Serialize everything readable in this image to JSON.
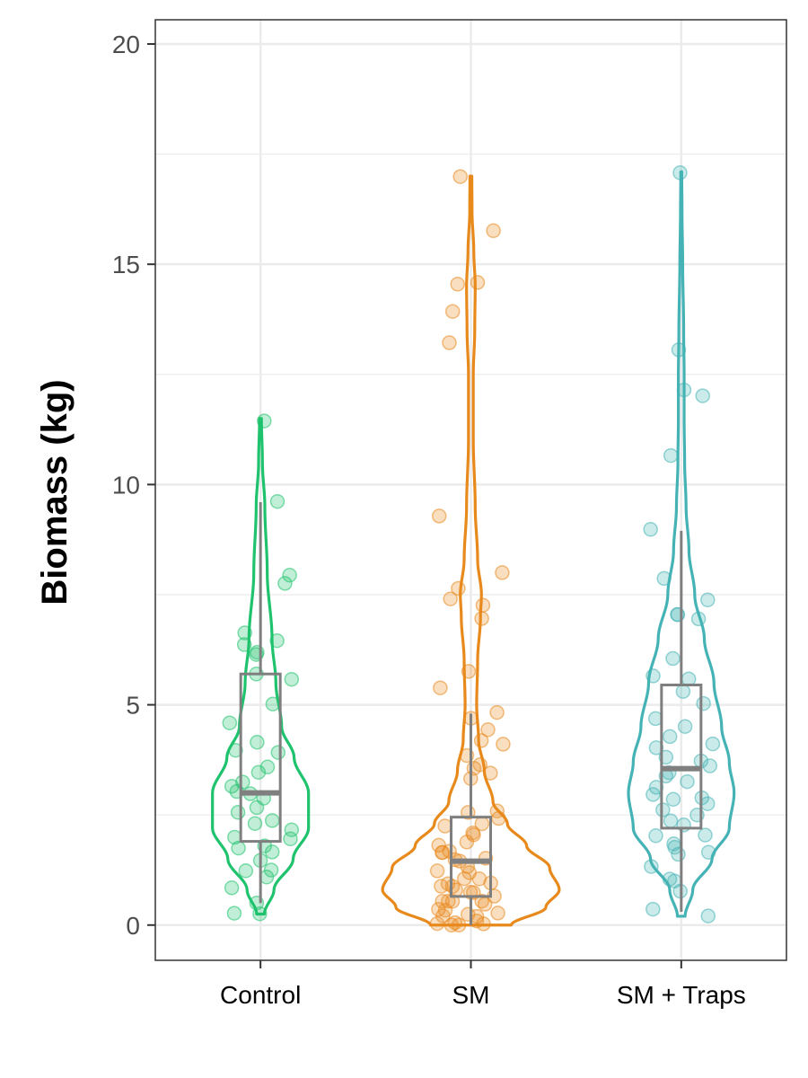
{
  "chart_data": {
    "type": "violin",
    "title": "",
    "xlabel": "",
    "ylabel": "Biomass (kg)",
    "ylim": [
      -0.8,
      20.55
    ],
    "yticks": [
      0,
      5,
      10,
      15,
      20
    ],
    "grid": true,
    "legend": "none",
    "categories": [
      "Control",
      "SM",
      "SM + Traps"
    ],
    "box_color": "#7f7f7f",
    "series": [
      {
        "category": "Control",
        "color": "#1fc36d",
        "min": 0.25,
        "max": 11.5,
        "box": {
          "whisker_low": 0.5,
          "q1": 1.9,
          "median": 3.0,
          "q3": 5.7,
          "whisker_high": 9.6
        },
        "density": [
          [
            0.25,
            0.04
          ],
          [
            0.8,
            0.14
          ],
          [
            1.5,
            0.34
          ],
          [
            2.2,
            0.5
          ],
          [
            3.0,
            0.5
          ],
          [
            3.8,
            0.35
          ],
          [
            4.5,
            0.22
          ],
          [
            5.5,
            0.16
          ],
          [
            6.5,
            0.12
          ],
          [
            8.0,
            0.07
          ],
          [
            9.5,
            0.045
          ],
          [
            10.5,
            0.02
          ],
          [
            11.5,
            0.01
          ]
        ],
        "points": [
          0.25,
          0.3,
          0.5,
          0.8,
          1.1,
          1.2,
          1.3,
          1.5,
          1.7,
          1.8,
          1.8,
          1.9,
          2.0,
          2.2,
          2.3,
          2.4,
          2.5,
          2.7,
          2.9,
          3.0,
          3.0,
          3.1,
          3.2,
          3.5,
          3.6,
          3.9,
          4.0,
          4.2,
          4.6,
          5.0,
          5.6,
          5.7,
          6.1,
          6.2,
          6.4,
          6.5,
          6.6,
          7.7,
          7.9,
          9.6,
          11.5
        ]
      },
      {
        "category": "SM",
        "color": "#e8891c",
        "min": 0.0,
        "max": 17.0,
        "box": {
          "whisker_low": 0.0,
          "q1": 0.65,
          "median": 1.45,
          "q3": 2.45,
          "whisker_high": 4.8
        },
        "density": [
          [
            0.0,
            0.42
          ],
          [
            0.4,
            0.78
          ],
          [
            0.8,
            0.92
          ],
          [
            1.3,
            0.82
          ],
          [
            1.8,
            0.58
          ],
          [
            2.3,
            0.38
          ],
          [
            2.8,
            0.23
          ],
          [
            3.5,
            0.14
          ],
          [
            4.2,
            0.08
          ],
          [
            5.0,
            0.06
          ],
          [
            6.0,
            0.07
          ],
          [
            7.0,
            0.1
          ],
          [
            7.5,
            0.11
          ],
          [
            8.3,
            0.07
          ],
          [
            9.5,
            0.045
          ],
          [
            11.0,
            0.025
          ],
          [
            12.5,
            0.025
          ],
          [
            13.5,
            0.04
          ],
          [
            14.5,
            0.045
          ],
          [
            15.3,
            0.03
          ],
          [
            16.2,
            0.012
          ],
          [
            17.0,
            0.01
          ]
        ],
        "points": [
          0.0,
          0.0,
          0.0,
          0.0,
          0.05,
          0.1,
          0.15,
          0.2,
          0.2,
          0.3,
          0.3,
          0.4,
          0.45,
          0.5,
          0.5,
          0.6,
          0.6,
          0.7,
          0.7,
          0.8,
          0.8,
          0.9,
          0.9,
          1.0,
          1.0,
          1.1,
          1.1,
          1.2,
          1.2,
          1.3,
          1.4,
          1.5,
          1.5,
          1.6,
          1.7,
          1.7,
          1.8,
          1.9,
          2.0,
          2.1,
          2.2,
          2.3,
          2.4,
          2.5,
          2.6,
          3.3,
          3.4,
          3.5,
          3.6,
          3.9,
          4.1,
          4.2,
          4.4,
          4.7,
          4.8,
          5.4,
          5.7,
          7.0,
          7.3,
          7.4,
          7.7,
          8.0,
          9.3,
          13.2,
          13.9,
          14.5,
          14.6,
          15.8,
          17.0
        ]
      },
      {
        "category": "SM + Traps",
        "color": "#45b3b5",
        "min": 0.2,
        "max": 17.1,
        "box": {
          "whisker_low": 0.3,
          "q1": 2.2,
          "median": 3.55,
          "q3": 5.45,
          "whisker_high": 8.95
        },
        "density": [
          [
            0.2,
            0.04
          ],
          [
            0.8,
            0.12
          ],
          [
            1.5,
            0.32
          ],
          [
            2.2,
            0.5
          ],
          [
            3.0,
            0.55
          ],
          [
            3.7,
            0.5
          ],
          [
            4.5,
            0.42
          ],
          [
            5.5,
            0.34
          ],
          [
            6.5,
            0.24
          ],
          [
            7.5,
            0.14
          ],
          [
            8.5,
            0.08
          ],
          [
            9.5,
            0.05
          ],
          [
            10.5,
            0.035
          ],
          [
            11.5,
            0.03
          ],
          [
            12.5,
            0.03
          ],
          [
            13.5,
            0.025
          ],
          [
            15.0,
            0.015
          ],
          [
            16.2,
            0.008
          ],
          [
            17.1,
            0.005
          ]
        ],
        "points": [
          0.2,
          0.4,
          0.8,
          1.0,
          1.1,
          1.3,
          1.6,
          1.7,
          1.8,
          1.9,
          2.0,
          2.1,
          2.3,
          2.4,
          2.5,
          2.6,
          2.7,
          2.8,
          2.9,
          3.0,
          3.1,
          3.2,
          3.4,
          3.5,
          3.6,
          3.7,
          3.8,
          4.0,
          4.1,
          4.3,
          4.5,
          4.7,
          5.0,
          5.3,
          5.6,
          5.7,
          6.0,
          6.9,
          7.0,
          7.1,
          7.4,
          7.9,
          9.0,
          10.6,
          12.0,
          12.2,
          13.1,
          17.1
        ]
      }
    ]
  }
}
